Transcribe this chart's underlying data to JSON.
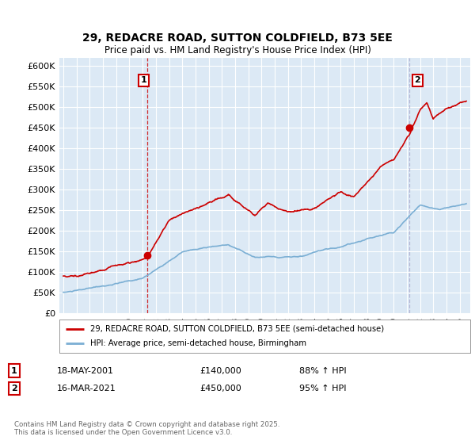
{
  "title_line1": "29, REDACRE ROAD, SUTTON COLDFIELD, B73 5EE",
  "title_line2": "Price paid vs. HM Land Registry's House Price Index (HPI)",
  "ylabel_ticks": [
    "£0",
    "£50K",
    "£100K",
    "£150K",
    "£200K",
    "£250K",
    "£300K",
    "£350K",
    "£400K",
    "£450K",
    "£500K",
    "£550K",
    "£600K"
  ],
  "ytick_values": [
    0,
    50000,
    100000,
    150000,
    200000,
    250000,
    300000,
    350000,
    400000,
    450000,
    500000,
    550000,
    600000
  ],
  "ylim": [
    0,
    620000
  ],
  "xlim_start": 1994.7,
  "xlim_end": 2025.8,
  "sale1_x": 2001.37,
  "sale1_y": 140000,
  "sale2_x": 2021.21,
  "sale2_y": 450000,
  "sale1_label": "1",
  "sale2_label": "2",
  "red_line_color": "#cc0000",
  "blue_line_color": "#7bafd4",
  "vline1_color": "#cc0000",
  "vline2_color": "#aaaacc",
  "legend_label_red": "29, REDACRE ROAD, SUTTON COLDFIELD, B73 5EE (semi-detached house)",
  "legend_label_blue": "HPI: Average price, semi-detached house, Birmingham",
  "annotation1_date": "18-MAY-2001",
  "annotation1_price": "£140,000",
  "annotation1_hpi": "88% ↑ HPI",
  "annotation2_date": "16-MAR-2021",
  "annotation2_price": "£450,000",
  "annotation2_hpi": "95% ↑ HPI",
  "footer": "Contains HM Land Registry data © Crown copyright and database right 2025.\nThis data is licensed under the Open Government Licence v3.0.",
  "plot_bg_color": "#dce9f5",
  "fig_bg_color": "#ffffff",
  "grid_color": "#ffffff"
}
